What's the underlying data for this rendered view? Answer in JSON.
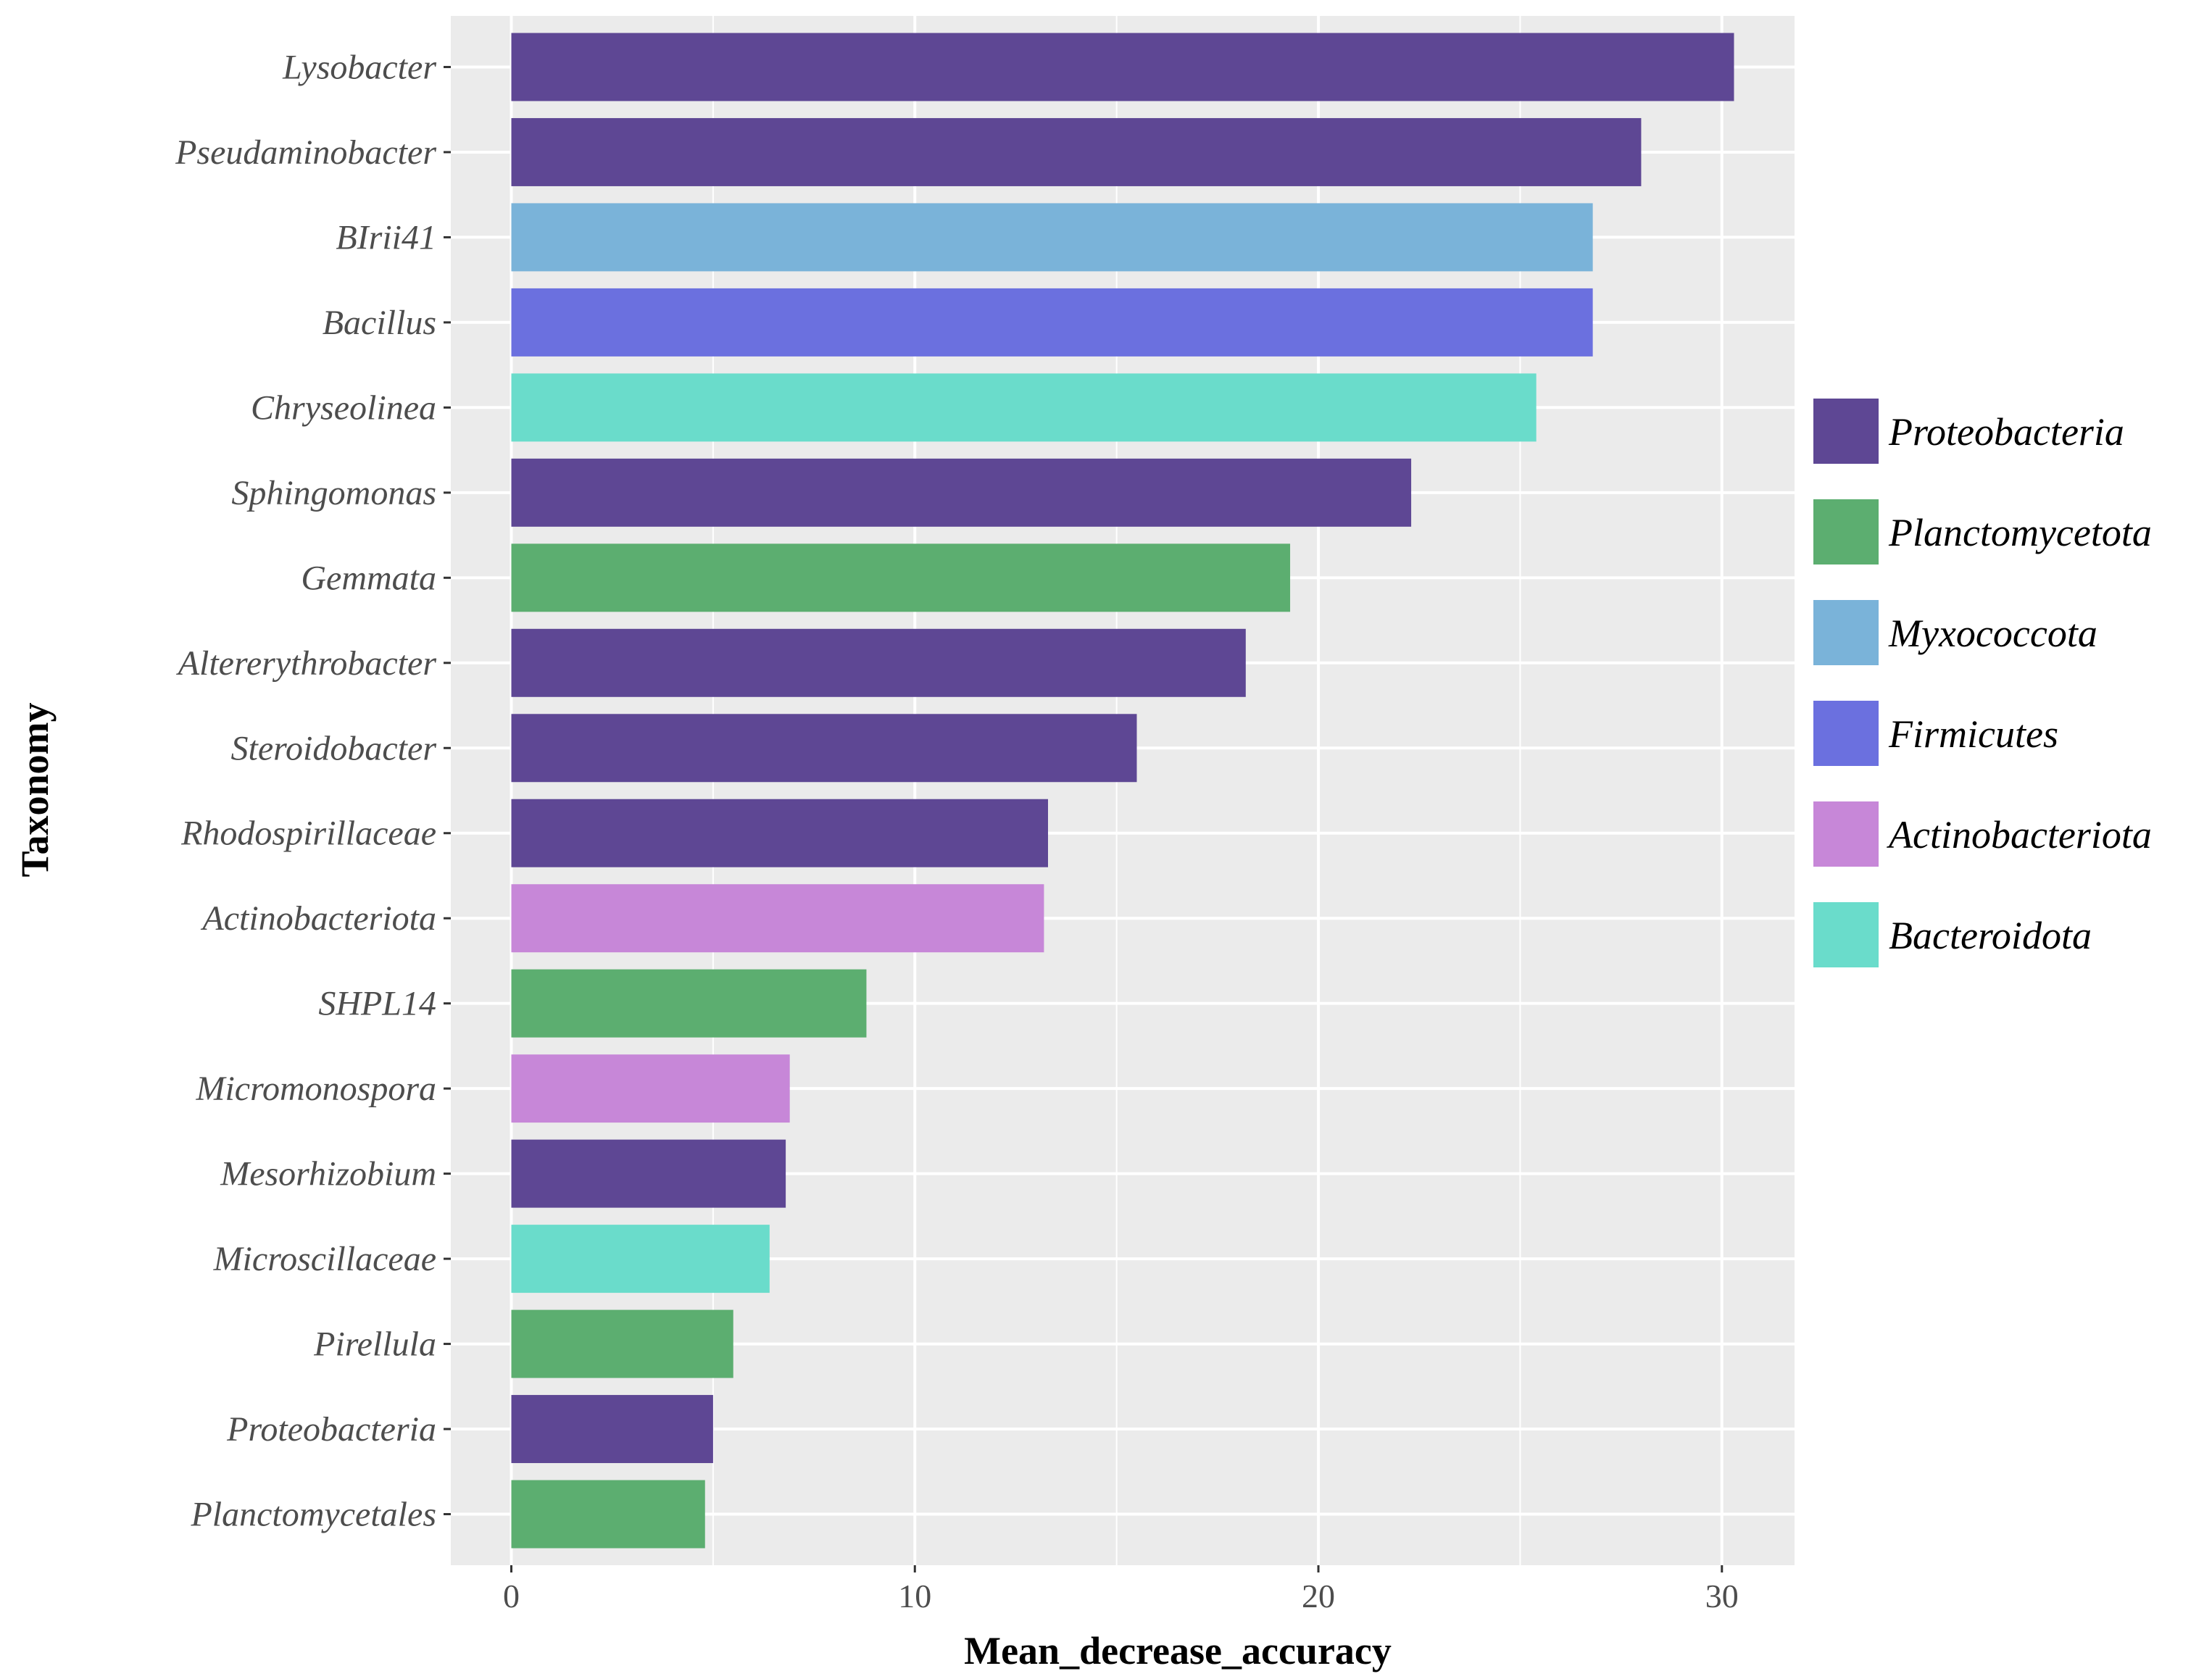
{
  "chart_data": {
    "type": "bar",
    "orientation": "horizontal",
    "title": "",
    "xlabel": "Mean_decrease_accuracy",
    "ylabel": "Taxonomy",
    "xlim": [
      -1.5,
      31.8
    ],
    "xticks": [
      0,
      10,
      20,
      30
    ],
    "grid": true,
    "categories": [
      "Lysobacter",
      "Pseudaminobacter",
      "BIrii41",
      "Bacillus",
      "Chryseolinea",
      "Sphingomonas",
      "Gemmata",
      "Altererythrobacter",
      "Steroidobacter",
      "Rhodospirillaceae",
      "Actinobacteriota",
      "SHPL14",
      "Micromonospora",
      "Mesorhizobium",
      "Microscillaceae",
      "Pirellula",
      "Proteobacteria",
      "Planctomycetales"
    ],
    "values": [
      30.3,
      28.0,
      26.8,
      26.8,
      25.4,
      22.3,
      19.3,
      18.2,
      15.5,
      13.3,
      13.2,
      8.8,
      6.9,
      6.8,
      6.4,
      5.5,
      5.0,
      4.8
    ],
    "phylum": [
      "Proteobacteria",
      "Proteobacteria",
      "Myxococcota",
      "Firmicutes",
      "Bacteroidota",
      "Proteobacteria",
      "Planctomycetota",
      "Proteobacteria",
      "Proteobacteria",
      "Proteobacteria",
      "Actinobacteriota",
      "Planctomycetota",
      "Actinobacteriota",
      "Proteobacteria",
      "Bacteroidota",
      "Planctomycetota",
      "Proteobacteria",
      "Planctomycetota"
    ],
    "legend": {
      "position": "right",
      "entries": [
        {
          "name": "Proteobacteria",
          "color": "#5e4794"
        },
        {
          "name": "Planctomycetota",
          "color": "#5cae70"
        },
        {
          "name": "Myxococcota",
          "color": "#7ab3d9"
        },
        {
          "name": "Firmicutes",
          "color": "#6b70df"
        },
        {
          "name": "Actinobacteriota",
          "color": "#c787d8"
        },
        {
          "name": "Bacteroidota",
          "color": "#6adccb"
        }
      ]
    },
    "colors": {
      "panel": "#ebebeb",
      "grid": "#ffffff",
      "tick": "#4d4d4d"
    }
  }
}
